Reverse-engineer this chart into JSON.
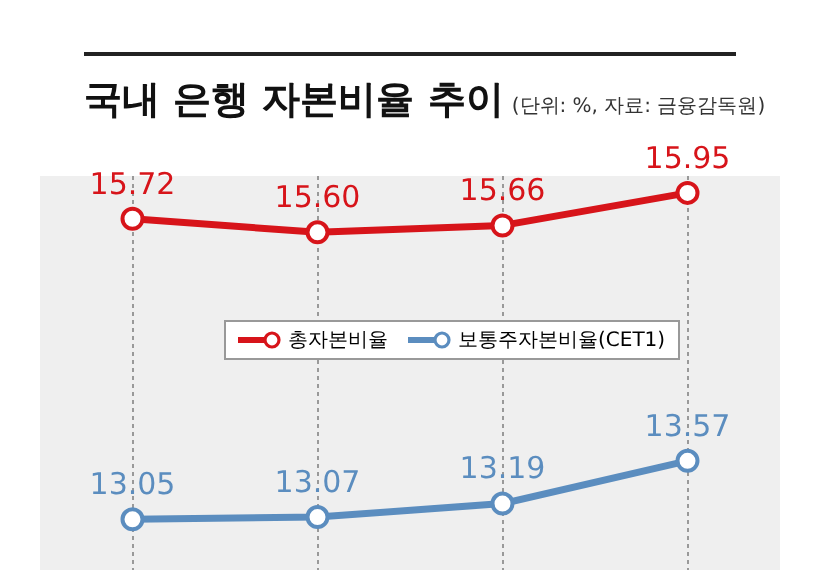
{
  "chart_data": {
    "type": "line",
    "title": "국내 은행 자본비율 추이",
    "subtitle": "(단위: %, 자료: 금융감독원)",
    "categories": [
      null,
      null,
      null,
      null
    ],
    "series": [
      {
        "name": "총자본비율",
        "color": "#d7141a",
        "values": [
          15.72,
          15.6,
          15.66,
          15.95
        ],
        "value_labels": [
          "15.72",
          "15.60",
          "15.66",
          "15.95"
        ]
      },
      {
        "name": "보통주자본비율(CET1)",
        "color": "#5b8dbf",
        "values": [
          13.05,
          13.07,
          13.19,
          13.57
        ],
        "value_labels": [
          "13.05",
          "13.07",
          "13.19",
          "13.57"
        ]
      }
    ],
    "ylim": [
      12.6,
      16.1
    ],
    "tick_labels": false,
    "grid": "x",
    "legend": "center",
    "marker": "circle",
    "line_style": "solid"
  }
}
